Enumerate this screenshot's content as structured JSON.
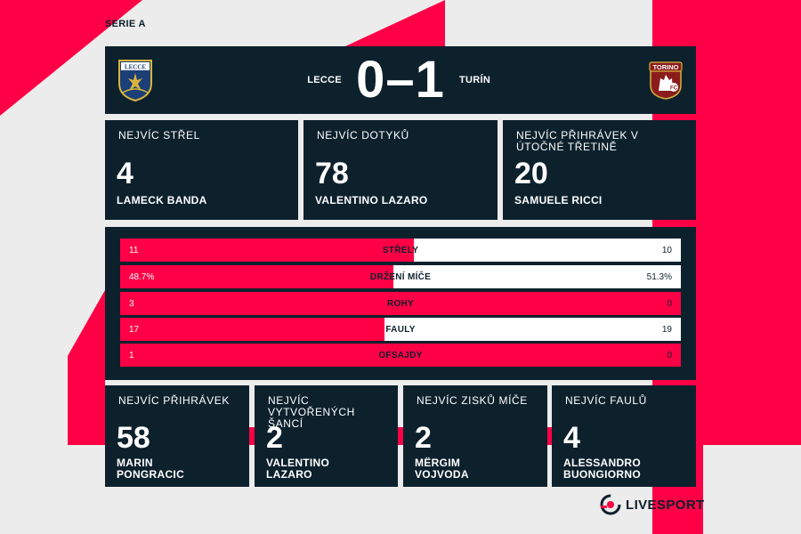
{
  "league": "SERIE A",
  "match": {
    "home_team": "LECCE",
    "away_team": "TURÍN",
    "score": "0–1",
    "home_crest_text": "LECCE",
    "away_crest_text": "TORINO"
  },
  "top_cards": [
    {
      "label": "NEJVÍC STŘEL",
      "value": "4",
      "player": "LAMECK BANDA"
    },
    {
      "label": "NEJVÍC DOTYKŮ",
      "value": "78",
      "player": "VALENTINO LAZARO"
    },
    {
      "label": "NEJVÍC PŘIHRÁVEK V ÚTOČNÉ TŘETINĚ",
      "value": "20",
      "player": "SAMUELE RICCI"
    }
  ],
  "comparison": [
    {
      "label": "STŘELY",
      "home": "11",
      "away": "10",
      "home_share": 0.524
    },
    {
      "label": "DRŽENÍ MÍČE",
      "home": "48.7%",
      "away": "51.3%",
      "home_share": 0.487
    },
    {
      "label": "ROHY",
      "home": "3",
      "away": "0",
      "home_share": 1.0
    },
    {
      "label": "FAULY",
      "home": "17",
      "away": "19",
      "home_share": 0.472
    },
    {
      "label": "OFSAJDY",
      "home": "1",
      "away": "0",
      "home_share": 1.0
    }
  ],
  "bottom_cards": [
    {
      "label": "NEJVÍC PŘIHRÁVEK",
      "value": "58",
      "player": "MARIN PONGRACIC"
    },
    {
      "label": "NEJVÍC VYTVOŘENÝCH ŠANCÍ",
      "value": "2",
      "player": "VALENTINO LAZARO"
    },
    {
      "label": "NEJVÍC ZISKŮ MÍČE",
      "value": "2",
      "player": "MËRGIM VOJVODA"
    },
    {
      "label": "NEJVÍC FAULŮ",
      "value": "4",
      "player": "ALESSANDRO BUONGIORNO"
    }
  ],
  "brand": {
    "name": "LIVESPORT"
  },
  "colors": {
    "accent": "#ff0046",
    "panel": "#0d212d",
    "background": "#ececec",
    "text_light": "#ffffff"
  },
  "icons": {
    "home_crest": "lecce-crest-icon",
    "away_crest": "torino-crest-icon",
    "brand": "livesport-logo-icon"
  }
}
